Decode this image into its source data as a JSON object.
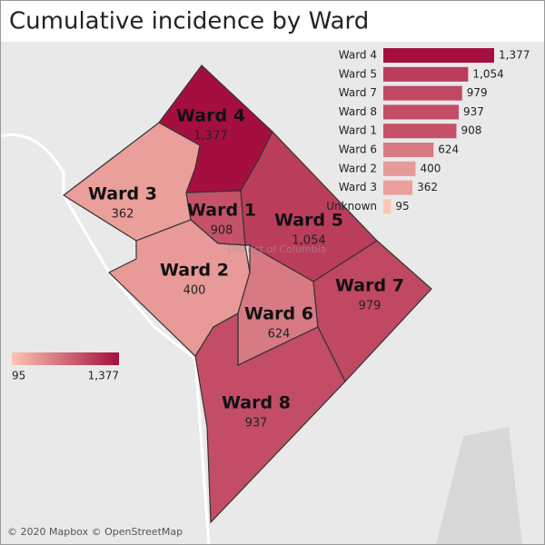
{
  "title": "Cumulative incidence by Ward",
  "color_range": [
    "#fcc5b3",
    "#a50f3f"
  ],
  "map": {
    "place_label": "District of Columbia",
    "attribution": "© 2020 Mapbox © OpenStreetMap",
    "regions": [
      {
        "label": "Ward 4",
        "value": 1377,
        "value_label": "1,377"
      },
      {
        "label": "Ward 3",
        "value": 362,
        "value_label": "362"
      },
      {
        "label": "Ward 1",
        "value": 908,
        "value_label": "908"
      },
      {
        "label": "Ward 5",
        "value": 1054,
        "value_label": "1,054"
      },
      {
        "label": "Ward 2",
        "value": 400,
        "value_label": "400"
      },
      {
        "label": "Ward 6",
        "value": 624,
        "value_label": "624"
      },
      {
        "label": "Ward 7",
        "value": 979,
        "value_label": "979"
      },
      {
        "label": "Ward 8",
        "value": 937,
        "value_label": "937"
      }
    ]
  },
  "legend": {
    "min": {
      "value": 95,
      "label": "95"
    },
    "max": {
      "value": 1377,
      "label": "1,377"
    }
  },
  "chart_data": {
    "type": "bar",
    "orientation": "horizontal",
    "categories": [
      "Ward 4",
      "Ward 5",
      "Ward 7",
      "Ward 8",
      "Ward 1",
      "Ward 6",
      "Ward 2",
      "Ward 3",
      "Unknown"
    ],
    "values": [
      1377,
      1054,
      979,
      937,
      908,
      624,
      400,
      362,
      95
    ],
    "value_labels": [
      "1,377",
      "1,054",
      "979",
      "937",
      "908",
      "624",
      "400",
      "362",
      "95"
    ]
  }
}
